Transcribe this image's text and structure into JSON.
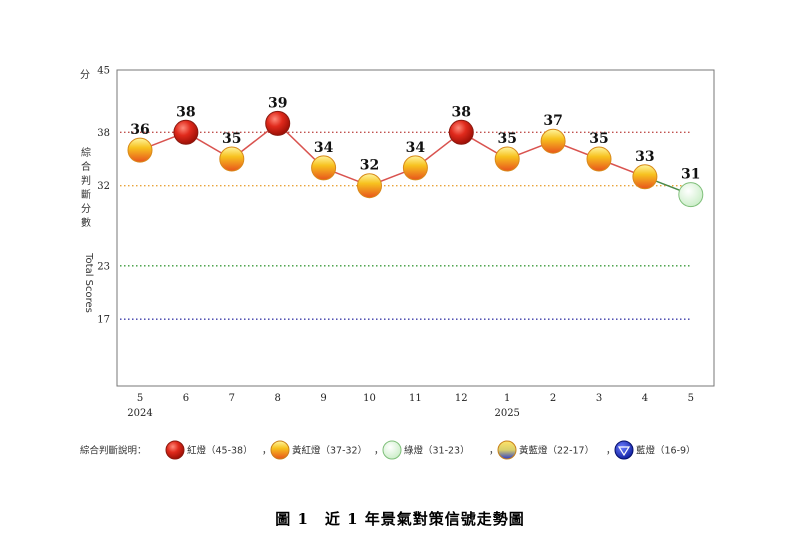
{
  "chart_data": {
    "type": "line",
    "ylabel_zh": [
      "綜",
      "合",
      "判",
      "斷",
      "分",
      "數"
    ],
    "ylabel_en": "Total Scores",
    "y_unit": "分",
    "ylim": [
      9,
      45
    ],
    "ytick_values": [
      45,
      38,
      32,
      23,
      17
    ],
    "ytick_labels": [
      "45",
      "38",
      "32",
      "23",
      "17"
    ],
    "thresholds": [
      {
        "value": 38,
        "color": "#c0504d"
      },
      {
        "value": 32,
        "color": "#e8a33a"
      },
      {
        "value": 23,
        "color": "#3a9a3a"
      },
      {
        "value": 17,
        "color": "#3a3aa8"
      }
    ],
    "categories": [
      "5",
      "6",
      "7",
      "8",
      "9",
      "10",
      "11",
      "12",
      "1",
      "2",
      "3",
      "4",
      "5"
    ],
    "year_labels": [
      {
        "index": 0,
        "label": "2024"
      },
      {
        "index": 8,
        "label": "2025"
      }
    ],
    "values": [
      36,
      38,
      35,
      39,
      34,
      32,
      34,
      38,
      35,
      37,
      35,
      33,
      31
    ],
    "data_labels": [
      "36",
      "38",
      "35",
      "39",
      "34",
      "32",
      "34",
      "38",
      "35",
      "37",
      "35",
      "33",
      "31"
    ],
    "signals": [
      "yellow-red",
      "red",
      "yellow-red",
      "red",
      "yellow-red",
      "yellow-red",
      "yellow-red",
      "red",
      "yellow-red",
      "yellow-red",
      "yellow-red",
      "yellow-red",
      "green"
    ],
    "grid": false
  },
  "legend": {
    "title": "綜合判斷說明：",
    "items": [
      {
        "signal": "red",
        "label": "紅燈（45-38）"
      },
      {
        "signal": "yellow-red",
        "label": "黃紅燈（37-32）"
      },
      {
        "signal": "green",
        "label": "綠燈（31-23）"
      },
      {
        "signal": "yellow-blue",
        "label": "黃藍燈（22-17）"
      },
      {
        "signal": "blue",
        "label": "藍燈（16-9）"
      }
    ],
    "separator": "，"
  },
  "caption": "圖 1　近 1 年景氣對策信號走勢圖"
}
